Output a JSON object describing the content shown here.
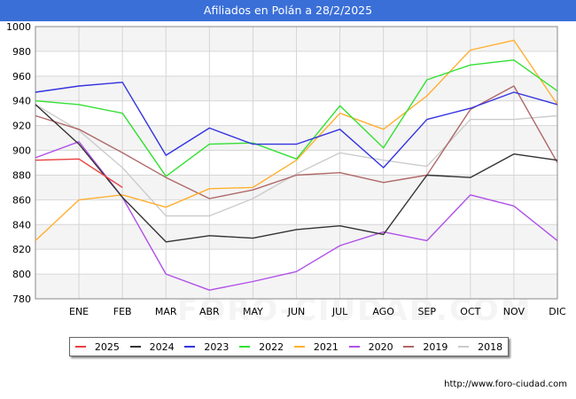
{
  "title": "Afiliados en Polán a 28/2/2025",
  "source": "http://www.foro-ciudad.com",
  "watermark": "FORO-CIUDAD.COM",
  "chart_data": {
    "type": "line",
    "categories": [
      "",
      "ENE",
      "FEB",
      "MAR",
      "ABR",
      "MAY",
      "JUN",
      "JUL",
      "AGO",
      "SEP",
      "OCT",
      "NOV",
      "DIC"
    ],
    "ylim": [
      780,
      1000
    ],
    "yticks": [
      780,
      800,
      820,
      840,
      860,
      880,
      900,
      920,
      940,
      960,
      980,
      1000
    ],
    "grid": true,
    "legend_position": "bottom",
    "series": [
      {
        "name": "2025",
        "color": "#e84040",
        "values": [
          892,
          893,
          870,
          null,
          null,
          null,
          null,
          null,
          null,
          null,
          null,
          null,
          null
        ]
      },
      {
        "name": "2024",
        "color": "#333333",
        "values": [
          937,
          905,
          862,
          826,
          831,
          829,
          836,
          839,
          832,
          880,
          878,
          897,
          892
        ]
      },
      {
        "name": "2023",
        "color": "#3333e0",
        "values": [
          947,
          952,
          955,
          896,
          918,
          905,
          905,
          917,
          886,
          925,
          934,
          947,
          937
        ]
      },
      {
        "name": "2022",
        "color": "#33e033",
        "values": [
          940,
          937,
          930,
          879,
          905,
          906,
          893,
          936,
          902,
          957,
          969,
          973,
          948
        ]
      },
      {
        "name": "2021",
        "color": "#ffb030",
        "values": [
          827,
          860,
          864,
          854,
          869,
          870,
          892,
          930,
          917,
          944,
          981,
          989,
          937
        ]
      },
      {
        "name": "2020",
        "color": "#b050e8",
        "values": [
          894,
          907,
          862,
          800,
          787,
          794,
          802,
          823,
          834,
          827,
          864,
          855,
          827
        ]
      },
      {
        "name": "2019",
        "color": "#b06868",
        "values": [
          928,
          917,
          898,
          878,
          861,
          868,
          880,
          882,
          874,
          880,
          933,
          952,
          890
        ]
      },
      {
        "name": "2018",
        "color": "#cccccc",
        "values": [
          937,
          916,
          886,
          847,
          847,
          861,
          881,
          898,
          892,
          887,
          925,
          925,
          928
        ]
      }
    ]
  }
}
